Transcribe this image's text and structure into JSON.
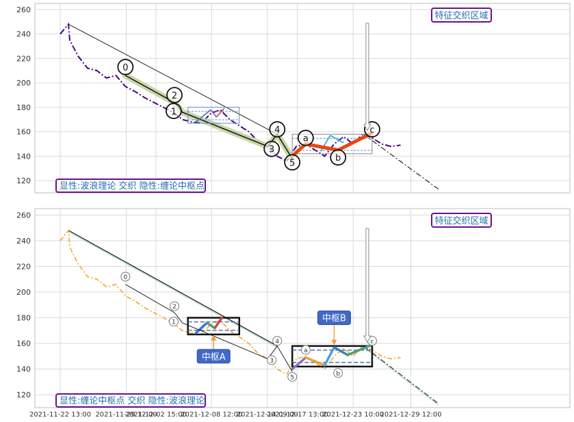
{
  "chart_data": [
    {
      "type": "line",
      "caption": "显性:波浪理论 交织 隐性:缠论中枢点",
      "callout": "特征交织区域",
      "ylim": [
        110,
        265
      ],
      "yticks": [
        120,
        140,
        160,
        180,
        200,
        220,
        240,
        260
      ],
      "grid": true,
      "colors": {
        "price": "#4b0082",
        "wave_band": "#c8d8a8",
        "zigzag": "#111111",
        "abc": "#e8470f",
        "frame": "#7e7e7e",
        "pivot_dash": "#5b8ac8",
        "callout_border": "#6a0f8e",
        "callout_text": "#1f6fb0"
      },
      "price": {
        "x": [
          "2021-11-22 13:00",
          "2021-11-23 10:00",
          "2021-11-23 13:00",
          "2021-11-24 10:00",
          "2021-11-25 10:00",
          "2021-11-26 10:00",
          "2021-11-27 10:00",
          "2021-11-28 10:00",
          "2021-11-29 10:00",
          "2021-11-30 10:00",
          "2021-12-01 10:00",
          "2021-12-02 10:00",
          "2021-12-03 10:00",
          "2021-12-04 10:00",
          "2021-12-05 10:00",
          "2021-12-06 10:00",
          "2021-12-07 10:00",
          "2021-12-08 10:00",
          "2021-12-09 10:00",
          "2021-12-10 10:00",
          "2021-12-11 10:00",
          "2021-12-12 10:00",
          "2021-12-13 10:00",
          "2021-12-14 10:00",
          "2021-12-15 10:00",
          "2021-12-16 10:00",
          "2021-12-17 10:00",
          "2021-12-18 10:00",
          "2021-12-19 10:00",
          "2021-12-20 10:00",
          "2021-12-21 10:00",
          "2021-12-22 10:00",
          "2021-12-23 10:00",
          "2021-12-24 10:00",
          "2021-12-25 10:00",
          "2021-12-26 10:00",
          "2021-12-27 10:00",
          "2021-12-28 10:00"
        ],
        "y": [
          240,
          248,
          235,
          222,
          212,
          210,
          204,
          206,
          197,
          193,
          188,
          184,
          180,
          176,
          170,
          168,
          167,
          175,
          178,
          170,
          165,
          160,
          152,
          148,
          140,
          136,
          148,
          150,
          145,
          140,
          150,
          156,
          150,
          158,
          155,
          150,
          148,
          149
        ]
      },
      "wave_labels": [
        {
          "label": "0",
          "x": "2021-11-29 10:00",
          "y": 213
        },
        {
          "label": "1",
          "x": "2021-12-04 12:00",
          "y": 177
        },
        {
          "label": "2",
          "x": "2021-12-04 14:00",
          "y": 190
        },
        {
          "label": "3",
          "x": "2021-12-14 20:00",
          "y": 146
        },
        {
          "label": "4",
          "x": "2021-12-15 10:00",
          "y": 162
        },
        {
          "label": "5",
          "x": "2021-12-17 00:00",
          "y": 135
        },
        {
          "label": "a",
          "x": "2021-12-18 10:00",
          "y": 155
        },
        {
          "label": "b",
          "x": "2021-12-21 20:00",
          "y": 139
        },
        {
          "label": "c",
          "x": "2021-12-25 10:00",
          "y": 162
        }
      ],
      "zigzag": {
        "x": [
          "2021-11-29 10:00",
          "2021-12-04 14:00",
          "2021-12-05 10:00",
          "2021-12-14 10:00",
          "2021-12-15 10:00",
          "2021-12-17 00:00"
        ],
        "y": [
          206,
          184,
          176,
          148,
          158,
          138
        ]
      },
      "abc": {
        "x": [
          "2021-12-17 00:00",
          "2021-12-18 10:00",
          "2021-12-21 20:00",
          "2021-12-25 10:00"
        ],
        "y": [
          140,
          150,
          145,
          159
        ]
      },
      "trendline": {
        "x": [
          "2021-11-23 10:00",
          "2021-12-15 10:00"
        ],
        "y": [
          248,
          158
        ]
      },
      "projection": {
        "x": [
          "2021-12-24 12:00",
          "2022-01-01 10:00"
        ],
        "y": [
          158,
          113
        ]
      }
    },
    {
      "type": "line",
      "caption": "显性:缠论中枢点 交织 隐性:波浪理论",
      "callout": "特征交织区域",
      "ylim": [
        110,
        265
      ],
      "yticks": [
        120,
        140,
        160,
        180,
        200,
        220,
        240,
        260
      ],
      "xticks": [
        "2021-11-22 13:00",
        "2021-11-29 12:00",
        "2021-12-02 15:00",
        "2021-12-08 12:00",
        "2021-12-14 09:00",
        "2021-12-17 13:00",
        "2021-12-23 10:00",
        "2021-12-29 12:00"
      ],
      "grid": true,
      "pivot_labels": [
        "中枢A",
        "中枢B"
      ],
      "colors": {
        "price": "#f5a623",
        "pivot_box": "#111111",
        "pivot_dash": "#4a6fb5",
        "label_bg": "#4169c9",
        "label_text": "#ffffff",
        "arrow": "#f0a040"
      },
      "price": {
        "x": [
          "2021-11-22 13:00",
          "2021-11-23 10:00",
          "2021-11-23 13:00",
          "2021-11-24 10:00",
          "2021-11-25 10:00",
          "2021-11-26 10:00",
          "2021-11-27 10:00",
          "2021-11-28 10:00",
          "2021-11-29 10:00",
          "2021-11-30 10:00",
          "2021-12-01 10:00",
          "2021-12-02 10:00",
          "2021-12-03 10:00",
          "2021-12-04 10:00",
          "2021-12-05 10:00",
          "2021-12-06 10:00",
          "2021-12-07 10:00",
          "2021-12-08 10:00",
          "2021-12-09 10:00",
          "2021-12-10 10:00",
          "2021-12-11 10:00",
          "2021-12-12 10:00",
          "2021-12-13 10:00",
          "2021-12-14 10:00",
          "2021-12-15 10:00",
          "2021-12-16 10:00",
          "2021-12-17 10:00",
          "2021-12-18 10:00",
          "2021-12-19 10:00",
          "2021-12-20 10:00",
          "2021-12-21 10:00",
          "2021-12-22 10:00",
          "2021-12-23 10:00",
          "2021-12-24 10:00",
          "2021-12-25 10:00",
          "2021-12-26 10:00",
          "2021-12-27 10:00",
          "2021-12-28 10:00"
        ],
        "y": [
          240,
          248,
          235,
          222,
          212,
          210,
          204,
          206,
          197,
          193,
          188,
          184,
          180,
          176,
          170,
          168,
          167,
          175,
          178,
          170,
          165,
          160,
          152,
          148,
          140,
          136,
          148,
          150,
          145,
          140,
          150,
          156,
          150,
          158,
          155,
          150,
          148,
          149
        ]
      },
      "points": [
        {
          "label": "0",
          "x": "2021-11-29 10:00",
          "y": 212
        },
        {
          "label": "1",
          "x": "2021-12-04 12:00",
          "y": 177
        },
        {
          "label": "2",
          "x": "2021-12-04 14:00",
          "y": 189
        },
        {
          "label": "3",
          "x": "2021-12-14 20:00",
          "y": 147
        },
        {
          "label": "4",
          "x": "2021-12-15 10:00",
          "y": 162
        },
        {
          "label": "5",
          "x": "2021-12-17 00:00",
          "y": 134
        },
        {
          "label": "a",
          "x": "2021-12-18 10:00",
          "y": 155
        },
        {
          "label": "b",
          "x": "2021-12-21 20:00",
          "y": 137
        },
        {
          "label": "c",
          "x": "2021-12-25 10:00",
          "y": 162
        }
      ],
      "trendline": {
        "x": [
          "2021-11-23 10:00",
          "2021-12-15 10:00"
        ],
        "y": [
          248,
          158
        ]
      },
      "projection": {
        "x": [
          "2021-12-24 12:00",
          "2022-01-01 10:00"
        ],
        "y": [
          158,
          113
        ]
      }
    }
  ]
}
